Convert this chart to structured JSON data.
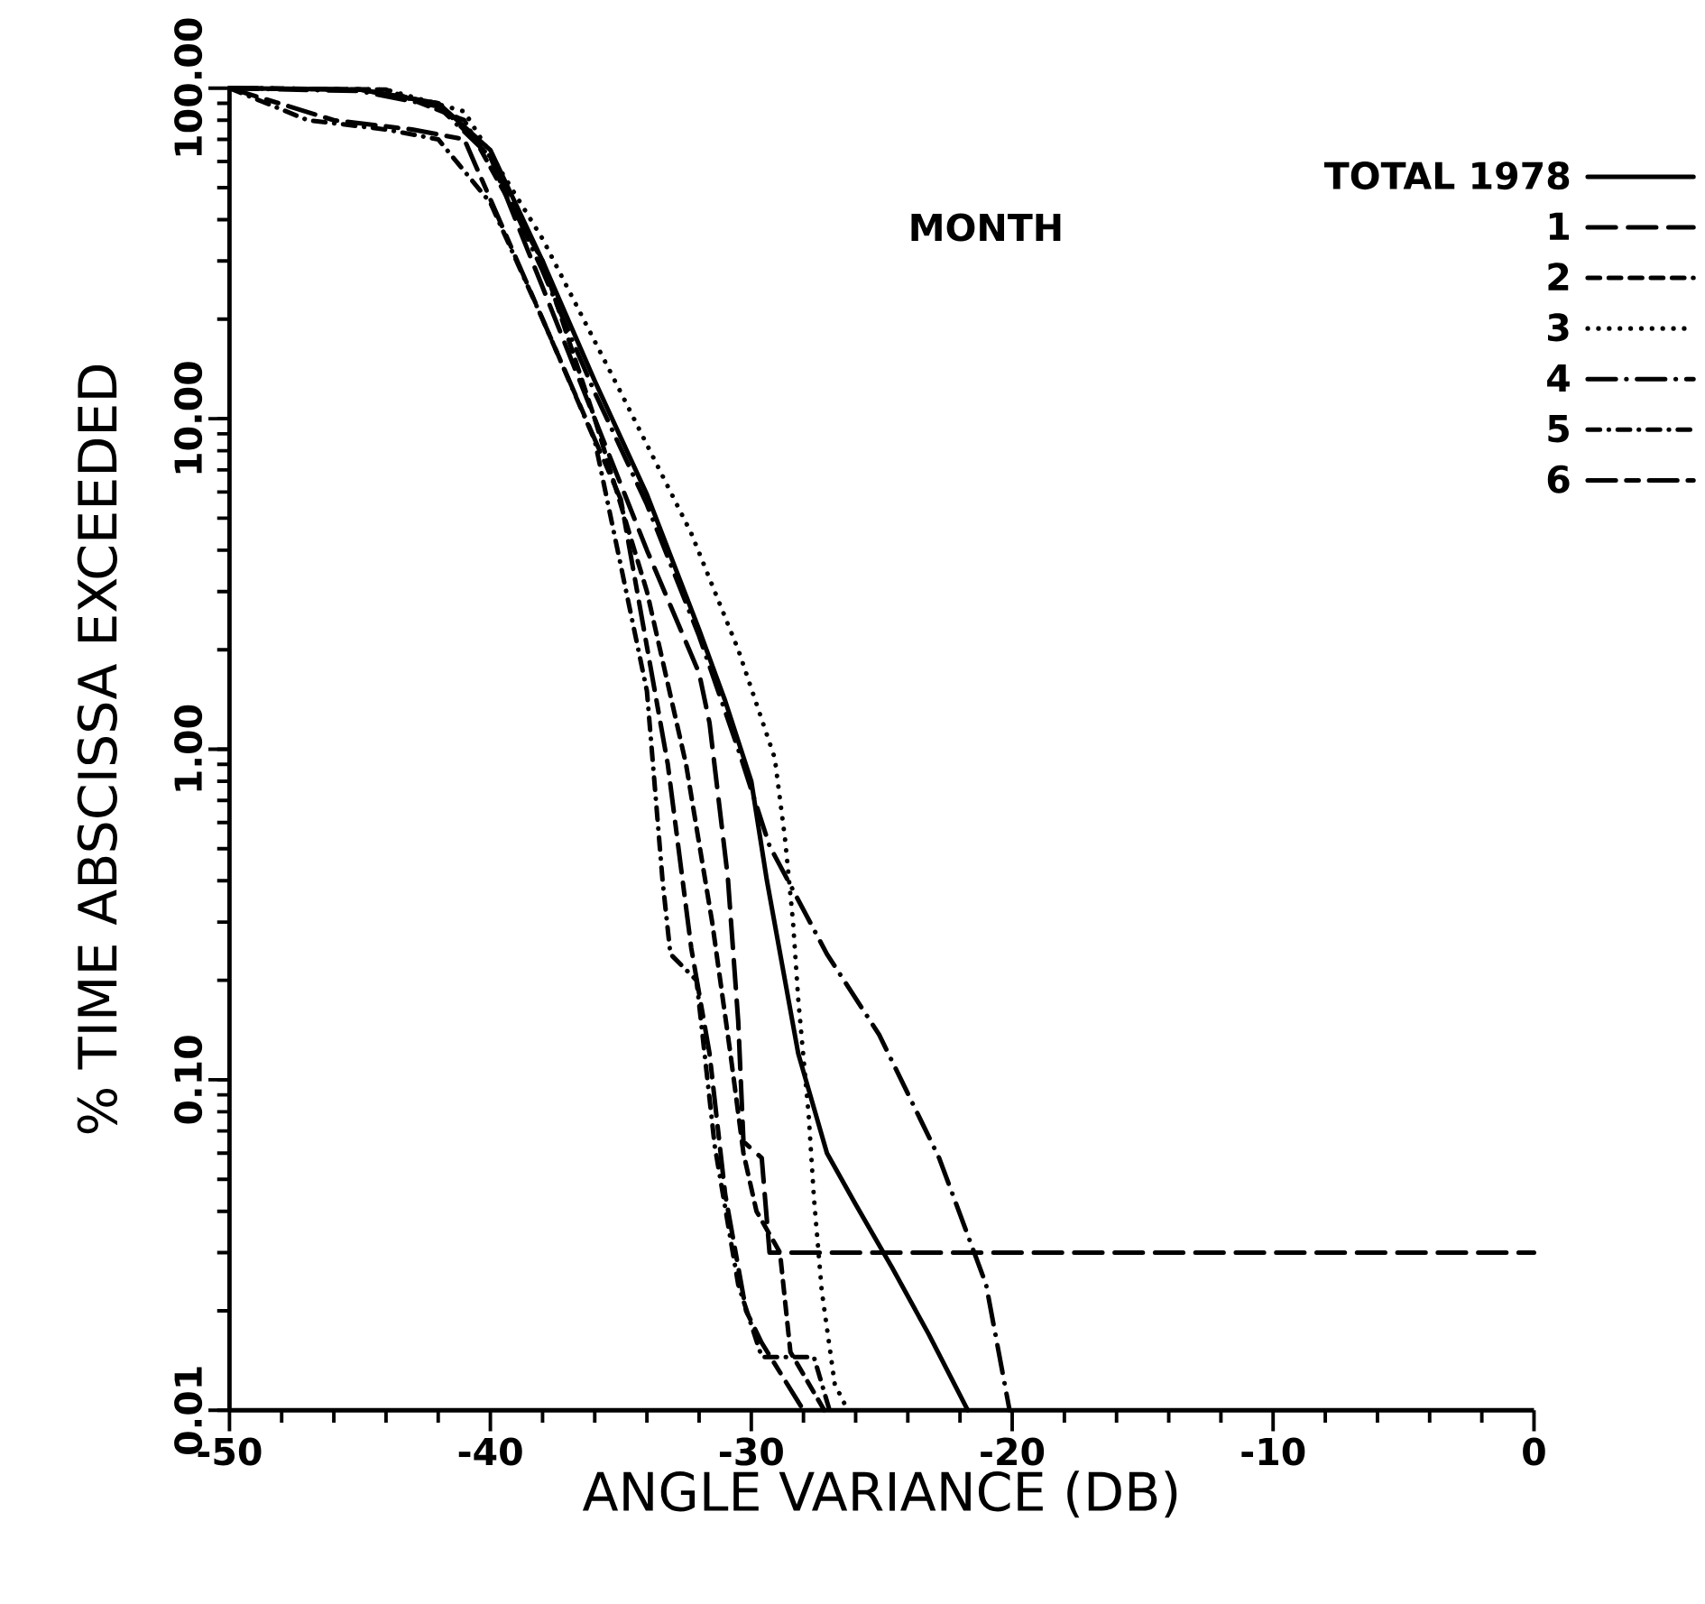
{
  "chart_data": {
    "type": "line",
    "xlabel": "ANGLE VARIANCE (DB)",
    "ylabel": "% TIME ABSCISSA EXCEEDED",
    "legend_title": "MONTH",
    "xlim": [
      -50,
      0
    ],
    "xticks": [
      -50,
      -40,
      -30,
      -20,
      -10,
      0
    ],
    "ylim": [
      0.01,
      100
    ],
    "log": "y",
    "yticks": [
      {
        "value": 0.01,
        "label": "0.01"
      },
      {
        "value": 0.1,
        "label": "0.10"
      },
      {
        "value": 1,
        "label": "1.00"
      },
      {
        "value": 10,
        "label": "10.00"
      },
      {
        "value": 100,
        "label": "100.00"
      }
    ],
    "legend": "top right",
    "grid": false,
    "series": [
      {
        "name": "TOTAL 1978",
        "color": "#000000",
        "line_style": "solid",
        "x": [
          -50,
          -45,
          -42,
          -40,
          -38,
          -36,
          -34,
          -32,
          -31,
          -30,
          -29.4,
          -28.2,
          -27.1,
          -26,
          -24.6,
          -23.2,
          -21.7
        ],
        "values": [
          100,
          99,
          90,
          65,
          30,
          13,
          5.9,
          2.3,
          1.4,
          0.8,
          0.4,
          0.12,
          0.06,
          0.042,
          0.027,
          0.017,
          0.01
        ]
      },
      {
        "name": "1",
        "color": "#000000",
        "line_style": "long dashed",
        "x": [
          -50,
          -45,
          -42,
          -40,
          -38,
          -36,
          -34,
          -32,
          -31.6,
          -30.9,
          -30.5,
          -30.3,
          -29.6,
          -29.3,
          0
        ],
        "values": [
          100,
          99,
          90,
          62,
          25,
          10,
          4,
          1.7,
          1.2,
          0.41,
          0.15,
          0.065,
          0.058,
          0.03,
          0.03
        ]
      },
      {
        "name": "2",
        "color": "#000000",
        "line_style": "dashed",
        "x": [
          -50,
          -44,
          -41,
          -38,
          -36,
          -34,
          -32.5,
          -31.5,
          -30.8,
          -30.3,
          -29.8,
          -28.9,
          -28.5,
          -27.2
        ],
        "values": [
          100,
          99,
          80,
          30,
          10,
          3,
          0.9,
          0.3,
          0.12,
          0.06,
          0.04,
          0.03,
          0.015,
          0.01
        ]
      },
      {
        "name": "3",
        "color": "#000000",
        "line_style": "dotted",
        "x": [
          -50,
          -44,
          -41,
          -38,
          -35,
          -32.3,
          -30.5,
          -29.1,
          -28.7,
          -28.4,
          -28.2,
          -27.8,
          -27.6,
          -27.3,
          -26.8,
          -26.3
        ],
        "values": [
          100,
          99,
          85,
          35,
          12,
          4.5,
          2,
          0.94,
          0.53,
          0.3,
          0.175,
          0.078,
          0.044,
          0.023,
          0.012,
          0.01
        ]
      },
      {
        "name": "4",
        "color": "#000000",
        "line_style": "long dash dot",
        "x": [
          -50,
          -45,
          -42,
          -40,
          -38,
          -36,
          -34,
          -32,
          -30.5,
          -29.3,
          -27.1,
          -25.1,
          -22.8,
          -21,
          -20.1
        ],
        "values": [
          100,
          98,
          88,
          62,
          28,
          12,
          5.5,
          2.2,
          1,
          0.51,
          0.24,
          0.137,
          0.058,
          0.024,
          0.01
        ]
      },
      {
        "name": "5",
        "color": "#000000",
        "line_style": "dash dot",
        "x": [
          -50,
          -47,
          -44,
          -42,
          -40,
          -38,
          -36,
          -34,
          -33.4,
          -33.1,
          -32.1,
          -31.4,
          -30.5,
          -29.6,
          -27.6,
          -27
        ],
        "values": [
          100,
          80,
          75,
          70,
          45,
          20,
          8.6,
          1.5,
          0.4,
          0.24,
          0.2,
          0.063,
          0.024,
          0.0145,
          0.0145,
          0.01
        ]
      },
      {
        "name": "6",
        "color": "#000000",
        "line_style": "long dash short dash",
        "x": [
          -50,
          -46,
          -43,
          -41,
          -38,
          -35,
          -33.2,
          -32.3,
          -31.6,
          -31,
          -30.2,
          -29.6,
          -28
        ],
        "values": [
          100,
          80,
          75,
          70,
          20,
          5.7,
          0.9,
          0.25,
          0.12,
          0.045,
          0.02,
          0.016,
          0.01
        ]
      }
    ]
  }
}
